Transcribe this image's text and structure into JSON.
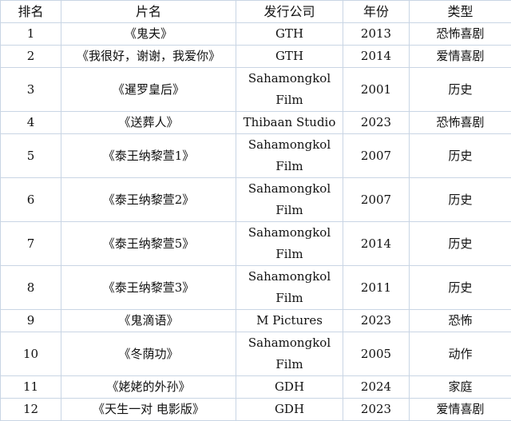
{
  "headers": [
    "排名",
    "片名",
    "发行公司",
    "年份",
    "类型"
  ],
  "rows": [
    {
      "rank": "1",
      "title": "《鬼夫》",
      "company": [
        "GTH"
      ],
      "year": "2013",
      "genre": "恐怖喜剧"
    },
    {
      "rank": "2",
      "title": "《我很好，谢谢，我爱你》",
      "company": [
        "GTH"
      ],
      "year": "2014",
      "genre": "爱情喜剧"
    },
    {
      "rank": "3",
      "title": "《暹罗皇后》",
      "company": [
        "Sahamongkol",
        "Film"
      ],
      "year": "2001",
      "genre": "历史"
    },
    {
      "rank": "4",
      "title": "《送葬人》",
      "company": [
        "Thibaan Studio"
      ],
      "year": "2023",
      "genre": "恐怖喜剧"
    },
    {
      "rank": "5",
      "title": "《泰王纳黎萱1》",
      "company": [
        "Sahamongkol",
        "Film"
      ],
      "year": "2007",
      "genre": "历史"
    },
    {
      "rank": "6",
      "title": "《泰王纳黎萱2》",
      "company": [
        "Sahamongkol",
        "Film"
      ],
      "year": "2007",
      "genre": "历史"
    },
    {
      "rank": "7",
      "title": "《泰王纳黎萱5》",
      "company": [
        "Sahamongkol",
        "Film"
      ],
      "year": "2014",
      "genre": "历史"
    },
    {
      "rank": "8",
      "title": "《泰王纳黎萱3》",
      "company": [
        "Sahamongkol",
        "Film"
      ],
      "year": "2011",
      "genre": "历史"
    },
    {
      "rank": "9",
      "title": "《鬼滴语》",
      "company": [
        "M Pictures"
      ],
      "year": "2023",
      "genre": "恐怖"
    },
    {
      "rank": "10",
      "title": "《冬荫功》",
      "company": [
        "Sahamongkol",
        "Film"
      ],
      "year": "2005",
      "genre": "动作"
    },
    {
      "rank": "11",
      "title": "《姥姥的外孙》",
      "company": [
        "GDH"
      ],
      "year": "2024",
      "genre": "家庭"
    },
    {
      "rank": "12",
      "title": "《天生一对 电影版》",
      "company": [
        "GDH"
      ],
      "year": "2023",
      "genre": "爱情喜剧"
    }
  ],
  "colors": {
    "border": "#c9d5e4",
    "text": "#111111"
  }
}
